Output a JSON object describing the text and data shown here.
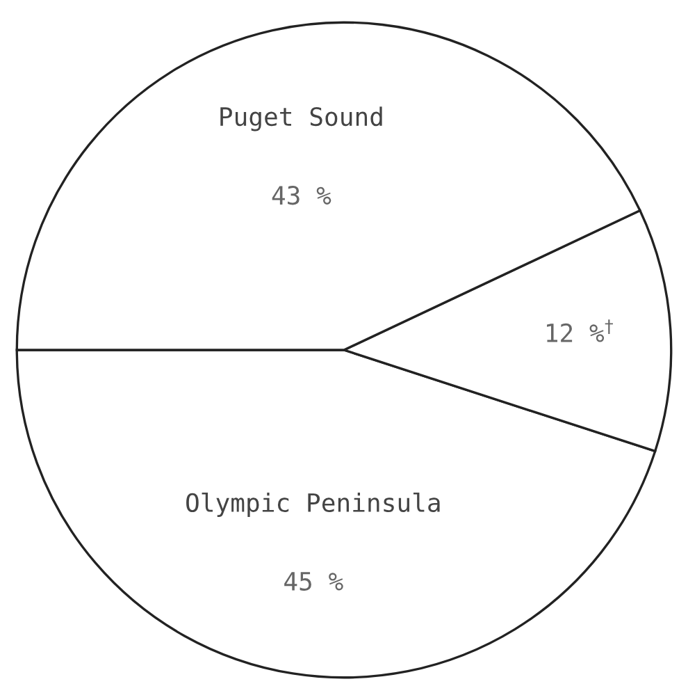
{
  "chart_data": {
    "type": "pie",
    "categories": [
      "Olympic Peninsula",
      null,
      "Puget Sound"
    ],
    "values": [
      45,
      12,
      43
    ],
    "value_labels": [
      "45 %",
      "12 %$^{†}$",
      "43 %"
    ],
    "colors": [
      "#ffffff",
      "#ffffff",
      "#ffffff"
    ]
  }
}
